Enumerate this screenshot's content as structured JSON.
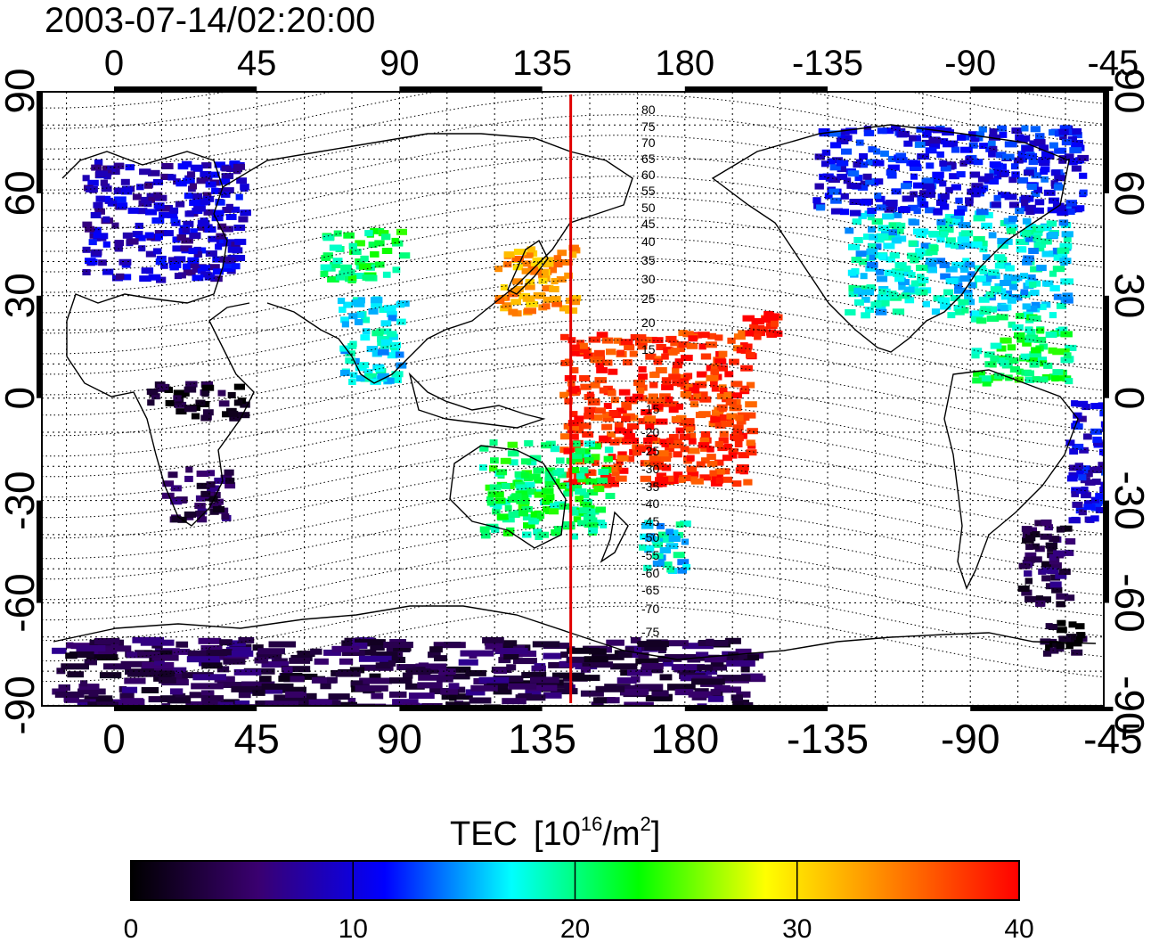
{
  "title": "2003-07-14/02:20:00",
  "map": {
    "projection": "equirectangular",
    "lon_ticks": [
      0,
      45,
      90,
      135,
      180,
      -135,
      -90,
      -45
    ],
    "lat_ticks": [
      90,
      60,
      30,
      0,
      -30,
      -60,
      -90
    ],
    "grid": "dotted",
    "marker_longitude": 144,
    "marker_color": "#e00000"
  },
  "contours": {
    "labels_north": [
      "80",
      "75",
      "70",
      "65",
      "60",
      "55",
      "50",
      "45",
      "40",
      "35",
      "30",
      "25",
      "20",
      "15"
    ],
    "labels_south": [
      "-15",
      "-20",
      "-25",
      "-30",
      "-35",
      "-40",
      "-45",
      "-50",
      "-55",
      "-60",
      "-65",
      "-70",
      "-75"
    ]
  },
  "colorbar": {
    "title_prefix": "TEC",
    "unit_base": "[10",
    "unit_exp": "16",
    "unit_mid": "/m",
    "unit_exp2": "2",
    "unit_end": "]",
    "min": 0,
    "max": 40,
    "tick_labels": [
      "0",
      "10",
      "20",
      "30",
      "40"
    ],
    "colormap": [
      "#000000",
      "#3a0070",
      "#0000ff",
      "#00ffff",
      "#00ff00",
      "#ffff00",
      "#ff8000",
      "#ff0000"
    ]
  },
  "tec_regions": [
    {
      "name": "europe",
      "lon": [
        -10,
        40
      ],
      "lat": [
        35,
        70
      ],
      "tec": 9
    },
    {
      "name": "north-america",
      "lon": [
        -130,
        -60
      ],
      "lat": [
        25,
        55
      ],
      "tec": 17
    },
    {
      "name": "canada-arctic",
      "lon": [
        -140,
        -55
      ],
      "lat": [
        55,
        80
      ],
      "tec": 11
    },
    {
      "name": "japan-east-asia",
      "lon": [
        120,
        145
      ],
      "lat": [
        25,
        45
      ],
      "tec": 33
    },
    {
      "name": "central-asia",
      "lon": [
        65,
        90
      ],
      "lat": [
        35,
        50
      ],
      "tec": 21
    },
    {
      "name": "pacific-equatorial",
      "lon": [
        140,
        200
      ],
      "lat": [
        -25,
        20
      ],
      "tec": 38
    },
    {
      "name": "hawaii",
      "lon": [
        198,
        208
      ],
      "lat": [
        18,
        26
      ],
      "tec": 40
    },
    {
      "name": "australia",
      "lon": [
        115,
        155
      ],
      "lat": [
        -40,
        -12
      ],
      "tec": 21
    },
    {
      "name": "new-zealand",
      "lon": [
        165,
        180
      ],
      "lat": [
        -50,
        -35
      ],
      "tec": 17
    },
    {
      "name": "south-america-east",
      "lon": [
        -60,
        -35
      ],
      "lat": [
        -35,
        0
      ],
      "tec": 10
    },
    {
      "name": "south-america-south",
      "lon": [
        -75,
        -60
      ],
      "lat": [
        -60,
        -35
      ],
      "tec": 4
    },
    {
      "name": "southern-africa",
      "lon": [
        15,
        35
      ],
      "lat": [
        -35,
        -20
      ],
      "tec": 4
    },
    {
      "name": "central-africa",
      "lon": [
        10,
        40
      ],
      "lat": [
        -5,
        5
      ],
      "tec": 2
    },
    {
      "name": "antarctic-peninsula",
      "lon": [
        -70,
        -55
      ],
      "lat": [
        -75,
        -65
      ],
      "tec": 1
    },
    {
      "name": "antarctica-ring",
      "lon": [
        -20,
        200
      ],
      "lat": [
        -90,
        -70
      ],
      "tec": 4
    },
    {
      "name": "caribbean",
      "lon": [
        -90,
        -60
      ],
      "lat": [
        5,
        25
      ],
      "tec": 21
    },
    {
      "name": "india",
      "lon": [
        70,
        90
      ],
      "lat": [
        5,
        30
      ],
      "tec": 17
    }
  ]
}
